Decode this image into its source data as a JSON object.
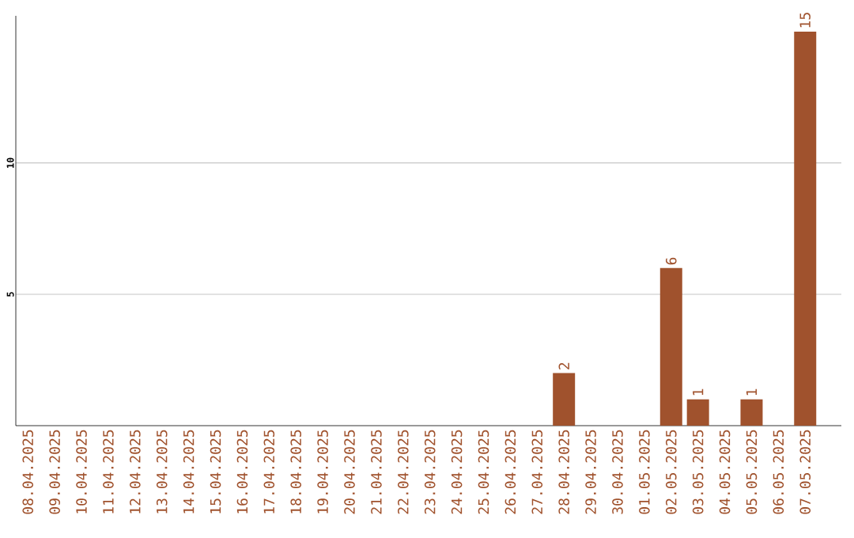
{
  "chart_data": {
    "type": "bar",
    "categories": [
      "08.04.2025",
      "09.04.2025",
      "10.04.2025",
      "11.04.2025",
      "12.04.2025",
      "13.04.2025",
      "14.04.2025",
      "15.04.2025",
      "16.04.2025",
      "17.04.2025",
      "18.04.2025",
      "19.04.2025",
      "20.04.2025",
      "21.04.2025",
      "22.04.2025",
      "23.04.2025",
      "24.04.2025",
      "25.04.2025",
      "26.04.2025",
      "27.04.2025",
      "28.04.2025",
      "29.04.2025",
      "30.04.2025",
      "01.05.2025",
      "02.05.2025",
      "03.05.2025",
      "04.05.2025",
      "05.05.2025",
      "06.05.2025",
      "07.05.2025"
    ],
    "values": [
      0,
      0,
      0,
      0,
      0,
      0,
      0,
      0,
      0,
      0,
      0,
      0,
      0,
      0,
      0,
      0,
      0,
      0,
      0,
      0,
      2,
      0,
      0,
      0,
      6,
      1,
      0,
      1,
      0,
      15
    ],
    "value_labels": [
      null,
      null,
      null,
      null,
      null,
      null,
      null,
      null,
      null,
      null,
      null,
      null,
      null,
      null,
      null,
      null,
      null,
      null,
      null,
      null,
      "2",
      null,
      null,
      null,
      "6",
      "1",
      null,
      "1",
      null,
      "15"
    ],
    "color": "#a0522d",
    "ylim": [
      0,
      15.6
    ],
    "yticks": [
      5,
      10
    ],
    "grid": "y"
  }
}
